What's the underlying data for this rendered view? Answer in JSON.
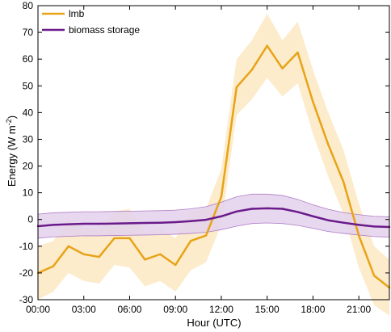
{
  "chart_data": {
    "type": "line",
    "xlabel": "Hour (UTC)",
    "ylabel": {
      "main": "Energy (W m",
      "sup": "-2",
      "close": ")"
    },
    "xlim": [
      0,
      23
    ],
    "ylim": [
      -30,
      80
    ],
    "x_ticks": [
      {
        "value": 0,
        "label": "00:00"
      },
      {
        "value": 3,
        "label": "03:00"
      },
      {
        "value": 6,
        "label": "06:00"
      },
      {
        "value": 9,
        "label": "09:00"
      },
      {
        "value": 12,
        "label": "12:00"
      },
      {
        "value": 15,
        "label": "15:00"
      },
      {
        "value": 18,
        "label": "18:00"
      },
      {
        "value": 21,
        "label": "21:00"
      }
    ],
    "y_ticks": [
      -30,
      -20,
      -10,
      0,
      10,
      20,
      30,
      40,
      50,
      60,
      70,
      80
    ],
    "legend": {
      "placement": "top-left"
    },
    "x": [
      0,
      1,
      2,
      3,
      4,
      5,
      6,
      7,
      8,
      9,
      10,
      11,
      12,
      13,
      14,
      15,
      16,
      17,
      18,
      19,
      20,
      21,
      22,
      23
    ],
    "series": [
      {
        "name": "lmb",
        "color": "#E8A317",
        "band_color": "#FBE9C3",
        "values": [
          -20,
          -17.5,
          -10,
          -13,
          -14,
          -7,
          -7,
          -15,
          -13,
          -17,
          -8,
          -6,
          8.5,
          49.5,
          56,
          65,
          56.5,
          62.5,
          44,
          28,
          14,
          -6,
          -21,
          -25.5
        ],
        "band_upper": [
          -10,
          -8,
          0,
          -3,
          -4,
          3,
          4,
          -5,
          -3,
          -7,
          3,
          4,
          19,
          60,
          67,
          77,
          67,
          74,
          56,
          40,
          26,
          6,
          -10,
          -15
        ],
        "band_lower": [
          -30,
          -27,
          -20,
          -23,
          -24,
          -17,
          -18,
          -25,
          -23,
          -27,
          -19,
          -16,
          -2,
          39,
          45,
          53,
          46,
          51,
          32,
          16,
          2,
          -18,
          -32,
          -36
        ]
      },
      {
        "name": "biomass storage",
        "color": "#6A1A8A",
        "band_color": "#E3D1EC",
        "band_edge_color": "#B07CC6",
        "values": [
          -2.5,
          -2,
          -1.8,
          -1.6,
          -1.6,
          -1.5,
          -1.4,
          -1.3,
          -1.2,
          -1,
          -0.6,
          -0.1,
          1.2,
          3,
          4,
          4.2,
          4,
          2.8,
          1.2,
          -0.3,
          -1.2,
          -2,
          -2.6,
          -2.8
        ],
        "band_upper": [
          2,
          2.5,
          2.7,
          2.9,
          2.9,
          3,
          3.1,
          3.2,
          3.3,
          3.5,
          4,
          4.8,
          6.5,
          8.5,
          9.5,
          9.5,
          9,
          7.5,
          5.5,
          3.8,
          2.6,
          1.8,
          1.2,
          1
        ],
        "band_lower": [
          -7,
          -6.5,
          -6.3,
          -6.1,
          -6.1,
          -6,
          -5.9,
          -5.8,
          -5.7,
          -5.5,
          -5.2,
          -4.8,
          -3.8,
          -2.5,
          -1.5,
          -1.3,
          -1.5,
          -2.2,
          -3.3,
          -4.5,
          -5.2,
          -5.8,
          -6.4,
          -6.6
        ]
      }
    ]
  }
}
